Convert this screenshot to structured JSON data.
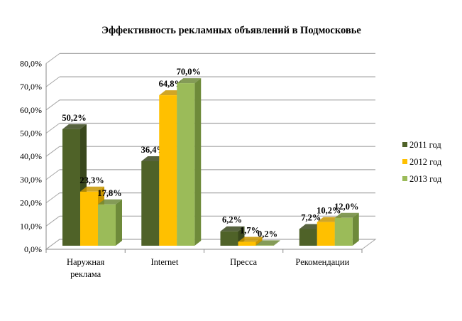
{
  "chart_data": {
    "type": "bar",
    "title": "Эффективность рекламных объявлений в Подмосковье",
    "categories": [
      [
        "Наружная",
        "реклама"
      ],
      [
        "Internet"
      ],
      [
        "Пресса"
      ],
      [
        "Рекомендации"
      ]
    ],
    "series": [
      {
        "name": "2011 год",
        "values": [
          50.2,
          36.4,
          6.2,
          7.2
        ],
        "labels": [
          "50,2%",
          "36,4%",
          "6,2%",
          "7,2%"
        ],
        "color": "#4f6228",
        "side": "#3a481d"
      },
      {
        "name": "2012 год",
        "values": [
          23.3,
          64.8,
          1.7,
          10.2
        ],
        "labels": [
          "23,3%",
          "64,8%",
          "1,7%",
          "10,2%"
        ],
        "color": "#ffc000",
        "side": "#c89600"
      },
      {
        "name": "2013 год",
        "values": [
          17.8,
          70.0,
          0.2,
          12.0
        ],
        "labels": [
          "17,8%",
          "70,0%",
          "0,2%",
          "12,0%"
        ],
        "color": "#9bbb59",
        "side": "#6e8a3a"
      }
    ],
    "yticks": [
      "0,0%",
      "10,0%",
      "20,0%",
      "30,0%",
      "40,0%",
      "50,0%",
      "60,0%",
      "70,0%",
      "80,0%"
    ],
    "ylim": [
      0,
      80
    ],
    "grid": true,
    "legend": "right"
  }
}
